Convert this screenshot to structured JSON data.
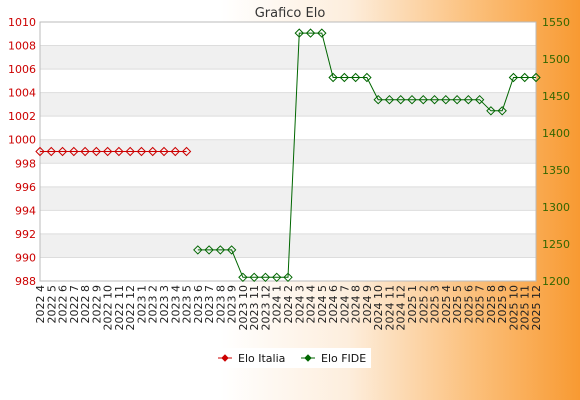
{
  "chart_data": {
    "type": "line",
    "title": "Grafico Elo",
    "categories": [
      "2022 4",
      "2022 5",
      "2022 6",
      "2022 7",
      "2022 8",
      "2022 9",
      "2022 10",
      "2022 11",
      "2022 12",
      "2023 1",
      "2023 2",
      "2023 3",
      "2023 4",
      "2023 5",
      "2023 6",
      "2023 7",
      "2023 8",
      "2023 9",
      "2023 10",
      "2023 11",
      "2023 12",
      "2024 1",
      "2024 2",
      "2024 3",
      "2024 4",
      "2024 5",
      "2024 6",
      "2024 7",
      "2024 8",
      "2024 9",
      "2024 10",
      "2024 11",
      "2024 12",
      "2025 1",
      "2025 2",
      "2025 3",
      "2025 4",
      "2025 5",
      "2025 6",
      "2025 7",
      "2025 8",
      "2025 9",
      "2025 10",
      "2025 11",
      "2025 12"
    ],
    "y_left": {
      "range": [
        988,
        1010
      ],
      "ticks": [
        988,
        990,
        992,
        994,
        996,
        998,
        1000,
        1002,
        1004,
        1006,
        1008,
        1010
      ],
      "color": "#cc0000"
    },
    "y_right": {
      "range": [
        1200,
        1550
      ],
      "ticks": [
        1200,
        1250,
        1300,
        1350,
        1400,
        1450,
        1500,
        1550
      ],
      "color": "#336600"
    },
    "grid": "horizontal, alternating bands",
    "legend_position": "bottom-center",
    "series": [
      {
        "name": "Elo Italia",
        "axis": "left",
        "color": "#cc0000",
        "values": [
          999,
          999,
          999,
          999,
          999,
          999,
          999,
          999,
          999,
          999,
          999,
          999,
          999,
          999,
          null,
          null,
          null,
          null,
          null,
          null,
          null,
          null,
          null,
          null,
          null,
          null,
          null,
          null,
          null,
          null,
          null,
          null,
          null,
          null,
          null,
          null,
          null,
          null,
          null,
          null,
          null,
          null,
          null,
          null,
          null
        ]
      },
      {
        "name": "Elo FIDE",
        "axis": "right",
        "color": "#006600",
        "values": [
          null,
          null,
          null,
          null,
          null,
          null,
          null,
          null,
          null,
          null,
          null,
          null,
          null,
          null,
          1242,
          1242,
          1242,
          1242,
          1205,
          1205,
          1205,
          1205,
          1205,
          1535,
          1535,
          1535,
          1475,
          1475,
          1475,
          1475,
          1445,
          1445,
          1445,
          1445,
          1445,
          1445,
          1445,
          1445,
          1445,
          1445,
          1430,
          1430,
          1475,
          1475,
          1475
        ]
      }
    ]
  }
}
